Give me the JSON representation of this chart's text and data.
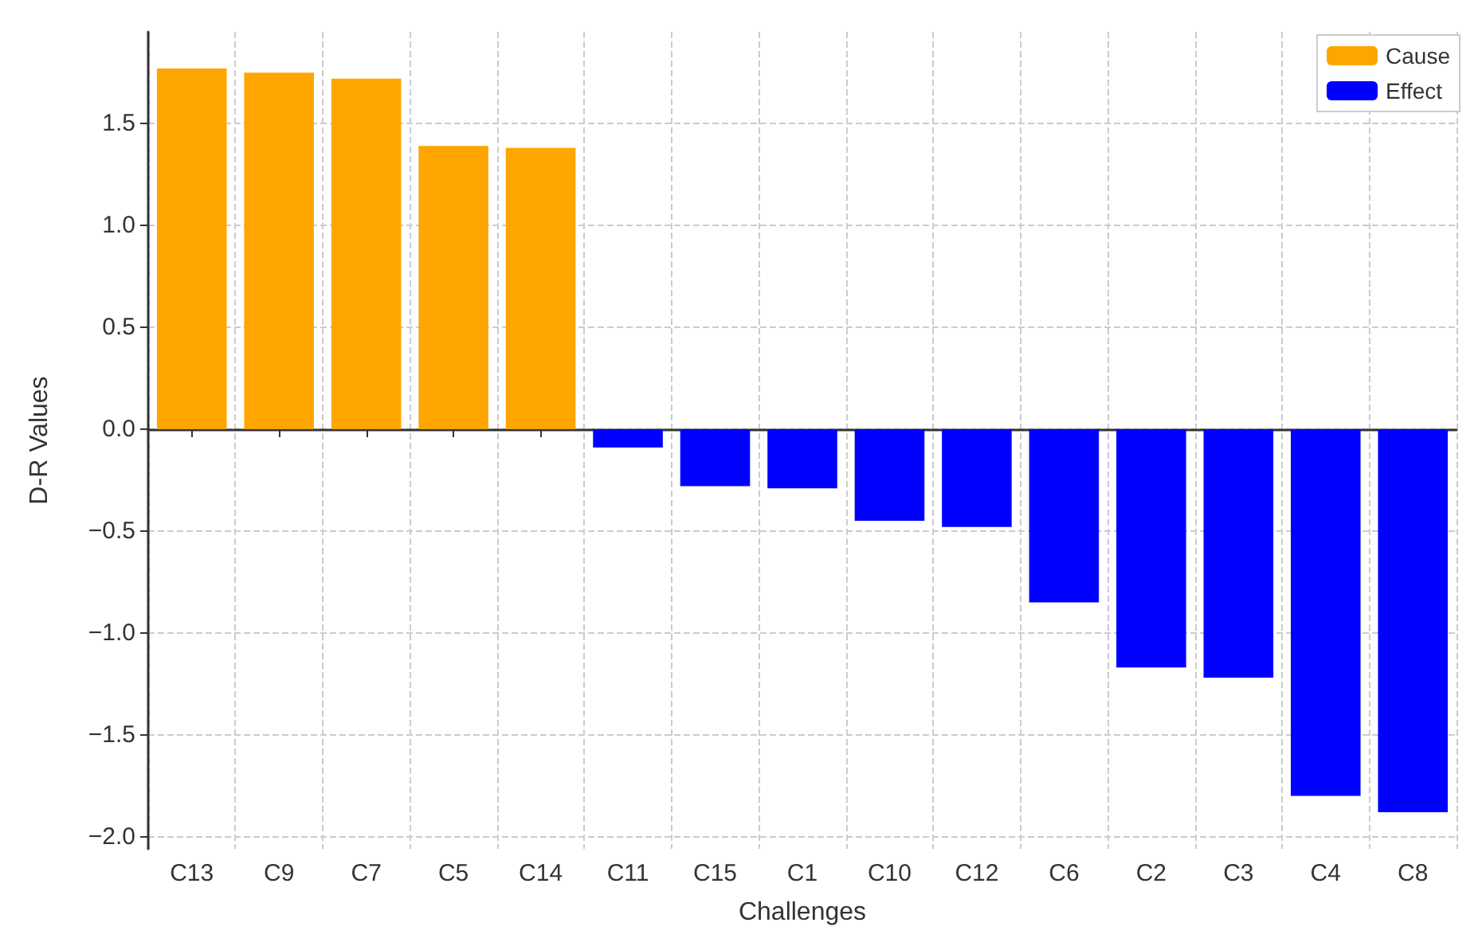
{
  "chart_data": {
    "type": "bar",
    "xlabel": "Challenges",
    "ylabel": "D-R Values",
    "categories": [
      "C13",
      "C9",
      "C7",
      "C5",
      "C14",
      "C11",
      "C15",
      "C1",
      "C10",
      "C12",
      "C6",
      "C2",
      "C3",
      "C4",
      "C8"
    ],
    "series": [
      {
        "name": "Cause",
        "color": "#ffa500",
        "values": [
          1.77,
          1.75,
          1.72,
          1.39,
          1.38,
          null,
          null,
          null,
          null,
          null,
          null,
          null,
          null,
          null,
          null
        ]
      },
      {
        "name": "Effect",
        "color": "#0000ff",
        "values": [
          null,
          null,
          null,
          null,
          null,
          -0.09,
          -0.28,
          -0.29,
          -0.45,
          -0.48,
          -0.85,
          -1.17,
          -1.22,
          -1.8,
          -1.88
        ]
      }
    ],
    "ylim": [
      -2.06,
      1.95
    ],
    "yticks": [
      {
        "value": -2,
        "label": "−2.0"
      },
      {
        "value": -1.5,
        "label": "−1.5"
      },
      {
        "value": -1,
        "label": "−1.0"
      },
      {
        "value": -0.5,
        "label": "−0.5"
      },
      {
        "value": 0,
        "label": "0.0"
      },
      {
        "value": 0.5,
        "label": "0.5"
      },
      {
        "value": 1,
        "label": "1.0"
      },
      {
        "value": 1.5,
        "label": "1.5"
      }
    ],
    "grid": true,
    "legend": "top right"
  }
}
